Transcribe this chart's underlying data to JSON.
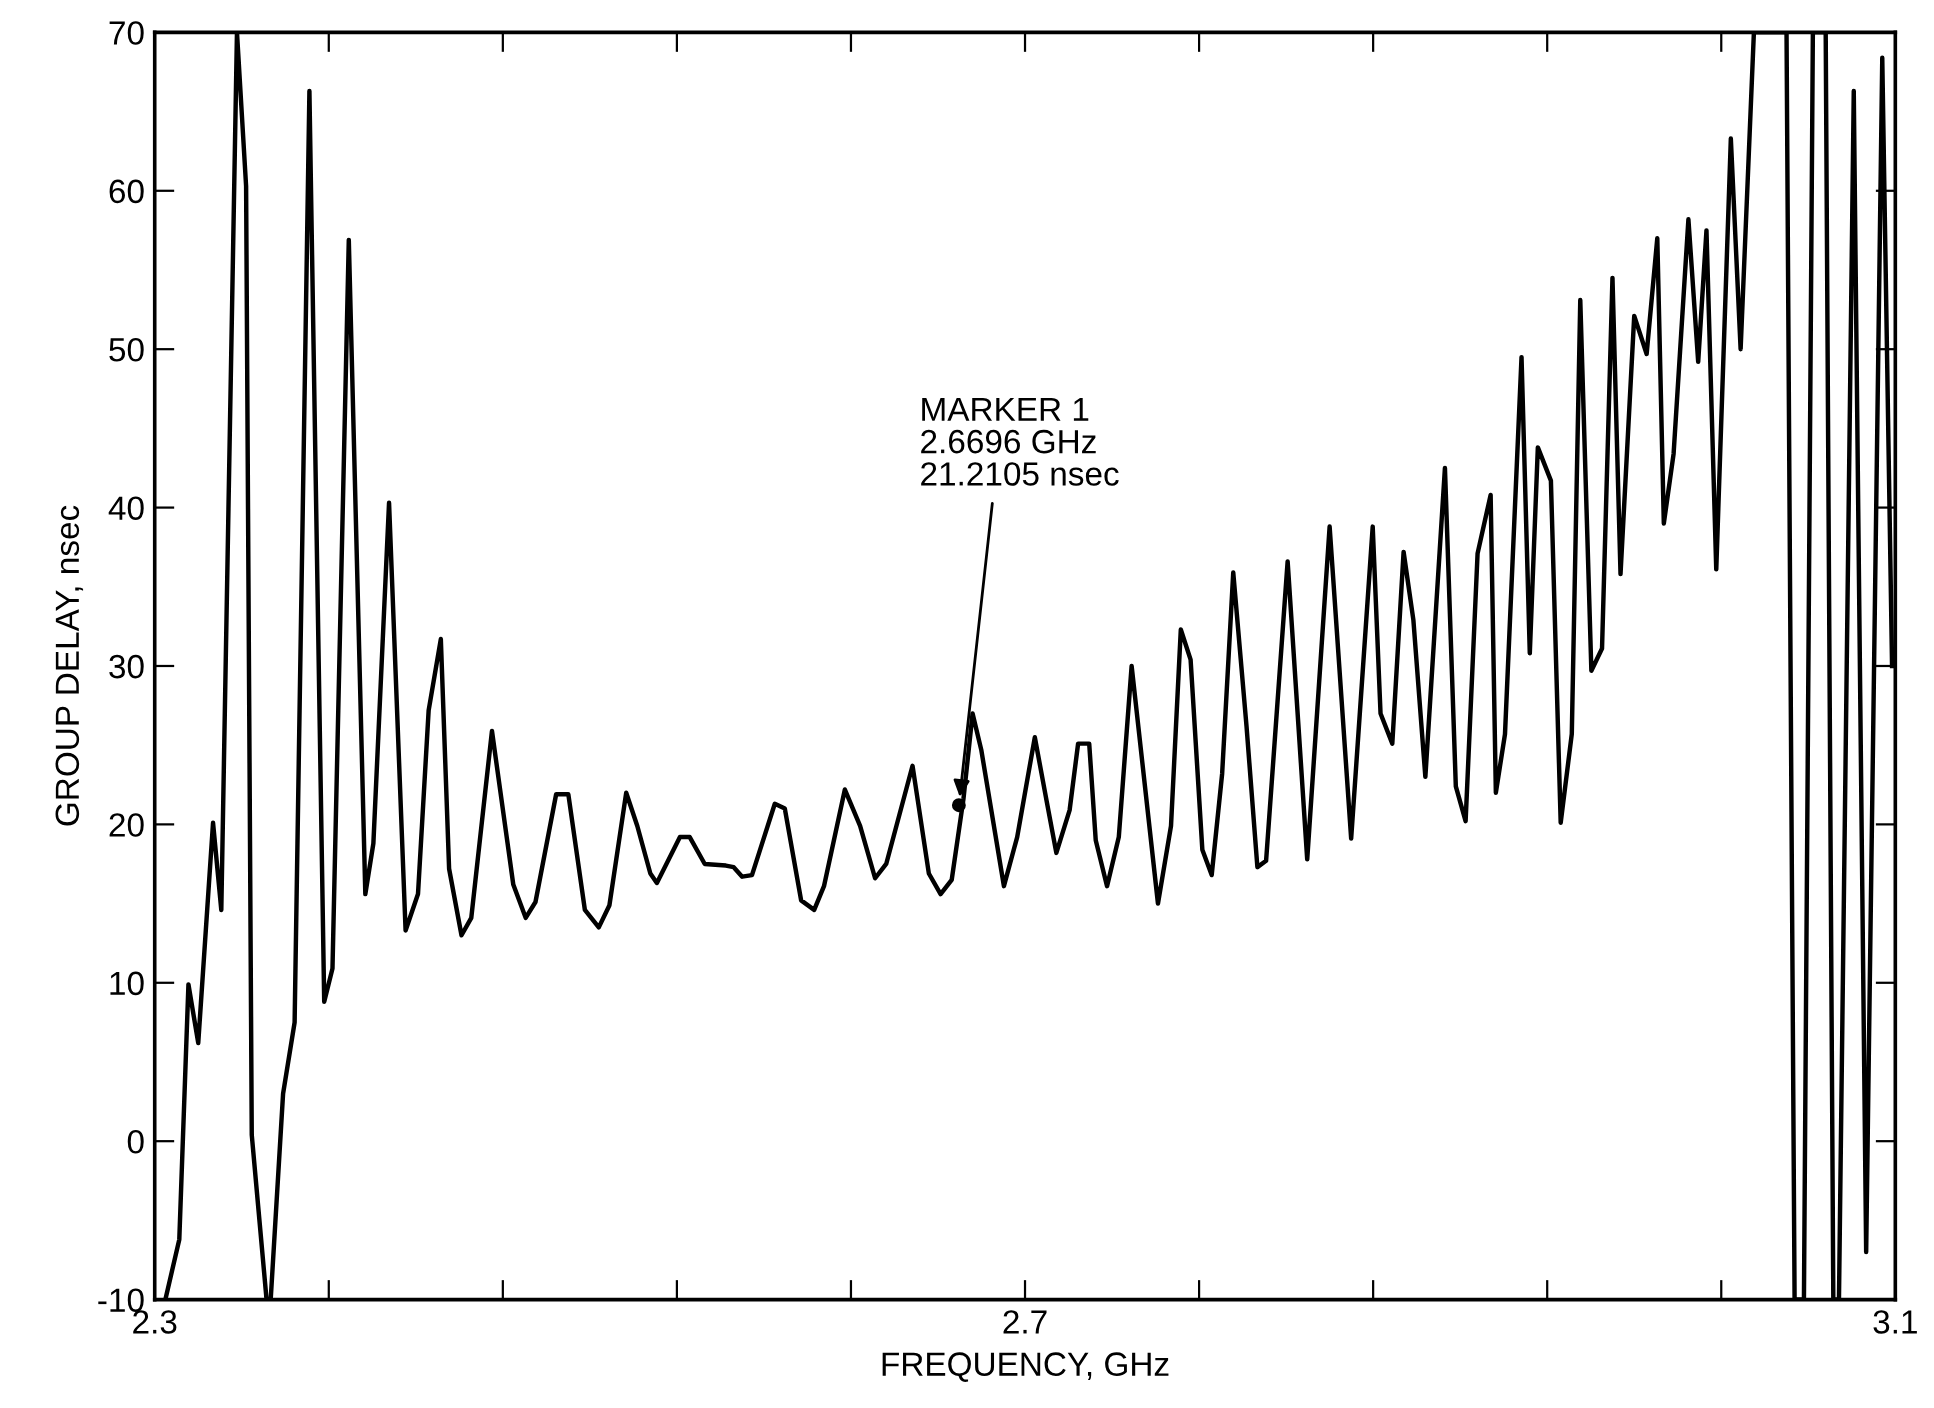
{
  "chart_data": {
    "type": "line",
    "xlabel": "FREQUENCY, GHz",
    "ylabel": "GROUP DELAY, nsec",
    "xlim": [
      2.3,
      3.1
    ],
    "ylim": [
      -10,
      70
    ],
    "xticks": [
      2.3,
      {
        "value": 2.38,
        "label": null
      },
      {
        "value": 2.46,
        "label": null
      },
      {
        "value": 2.54,
        "label": null
      },
      {
        "value": 2.62,
        "label": null
      },
      2.7,
      {
        "value": 2.78,
        "label": null
      },
      {
        "value": 2.86,
        "label": null
      },
      {
        "value": 2.94,
        "label": null
      },
      {
        "value": 3.02,
        "label": null
      },
      3.1
    ],
    "yticks": [
      -10,
      0,
      10,
      20,
      30,
      40,
      50,
      60,
      70
    ],
    "grid": false,
    "legend": false,
    "marker": "none",
    "line_style": "solid",
    "annotations": [
      {
        "text": "MARKER 1\n2.6696 GHz\n21.2105 nsec",
        "x": 2.6696,
        "y": 21.2105
      }
    ],
    "series": [
      {
        "color": "#000000",
        "x": [
          2.3049,
          2.3113,
          2.3155,
          2.32,
          2.3268,
          2.3306,
          2.3378,
          2.342,
          2.3446,
          2.3514,
          2.3533,
          2.359,
          2.3643,
          2.3711,
          2.3779,
          2.3817,
          2.3892,
          2.3968,
          2.4005,
          2.4077,
          2.4153,
          2.421,
          2.4259,
          2.4315,
          2.4353,
          2.441,
          2.4455,
          2.455,
          2.4648,
          2.4705,
          2.475,
          2.4845,
          2.4901,
          2.4977,
          2.5041,
          2.509,
          2.5167,
          2.5218,
          2.5278,
          2.5308,
          2.5414,
          2.5459,
          2.5528,
          2.5625,
          2.5661,
          2.57,
          2.5745,
          2.585,
          2.5896,
          2.5971,
          2.6031,
          2.6076,
          2.6172,
          2.6242,
          2.6311,
          2.6362,
          2.6483,
          2.6558,
          2.6612,
          2.6663,
          2.6717,
          2.6759,
          2.6799,
          2.6903,
          2.6964,
          2.7045,
          2.7099,
          2.7144,
          2.7205,
          2.7244,
          2.7295,
          2.7325,
          2.7377,
          2.7431,
          2.749,
          2.7611,
          2.7671,
          2.7716,
          2.7761,
          2.7815,
          2.7858,
          2.7906,
          2.7957,
          2.8018,
          2.8068,
          2.8108,
          2.8207,
          2.8297,
          2.84,
          2.8499,
          2.8598,
          2.8634,
          2.8688,
          2.874,
          2.8785,
          2.884,
          2.893,
          2.898,
          2.9025,
          2.908,
          2.914,
          2.9164,
          2.9206,
          2.9282,
          2.932,
          2.9357,
          2.9417,
          2.9462,
          2.9513,
          2.9552,
          2.9603,
          2.9652,
          2.97,
          2.9737,
          2.98,
          2.9857,
          2.9906,
          2.9936,
          2.9981,
          3.0049,
          3.0094,
          3.0132,
          3.0177,
          3.0244,
          3.0289,
          3.035,
          3.05,
          3.0537,
          3.058,
          3.0621,
          3.068,
          3.0715,
          3.0741,
          3.0809,
          3.0866,
          3.094,
          3.0985
        ],
        "values": [
          -10,
          -6.2,
          9.9,
          6.2,
          20.1,
          14.6,
          70,
          60.3,
          0.4,
          -10,
          -10,
          3.0,
          7.5,
          66.3,
          8.8,
          10.9,
          56.9,
          15.6,
          18.8,
          40.3,
          13.3,
          15.6,
          27.2,
          31.7,
          17.2,
          13.0,
          14.1,
          25.9,
          16.2,
          14.1,
          15.1,
          21.9,
          21.9,
          14.6,
          13.5,
          14.9,
          22.0,
          19.9,
          16.9,
          16.3,
          19.2,
          19.2,
          17.5,
          17.4,
          17.3,
          16.7,
          16.8,
          21.3,
          21.0,
          15.2,
          14.6,
          16.1,
          22.2,
          19.9,
          16.6,
          17.5,
          23.7,
          16.9,
          15.6,
          16.5,
          21.6,
          27.0,
          24.7,
          16.1,
          19.2,
          25.5,
          21.5,
          18.2,
          20.9,
          25.1,
          25.1,
          19.0,
          16.1,
          19.2,
          30.0,
          15.0,
          19.9,
          32.3,
          30.4,
          18.4,
          16.8,
          23.2,
          35.9,
          26.2,
          17.3,
          17.7,
          36.6,
          17.8,
          38.8,
          19.1,
          38.8,
          27.0,
          25.1,
          37.2,
          32.9,
          23.0,
          42.5,
          22.4,
          20.2,
          37.1,
          40.8,
          22.0,
          25.7,
          49.5,
          30.8,
          43.8,
          41.7,
          20.1,
          25.7,
          53.1,
          29.7,
          31.1,
          54.5,
          35.8,
          52.1,
          49.7,
          57.0,
          39.0,
          43.4,
          58.2,
          49.2,
          57.5,
          36.1,
          63.3,
          50.0,
          70,
          70,
          -10,
          -10,
          70,
          70,
          -10,
          -10,
          66.3,
          -7,
          68.4,
          30
        ]
      }
    ]
  }
}
